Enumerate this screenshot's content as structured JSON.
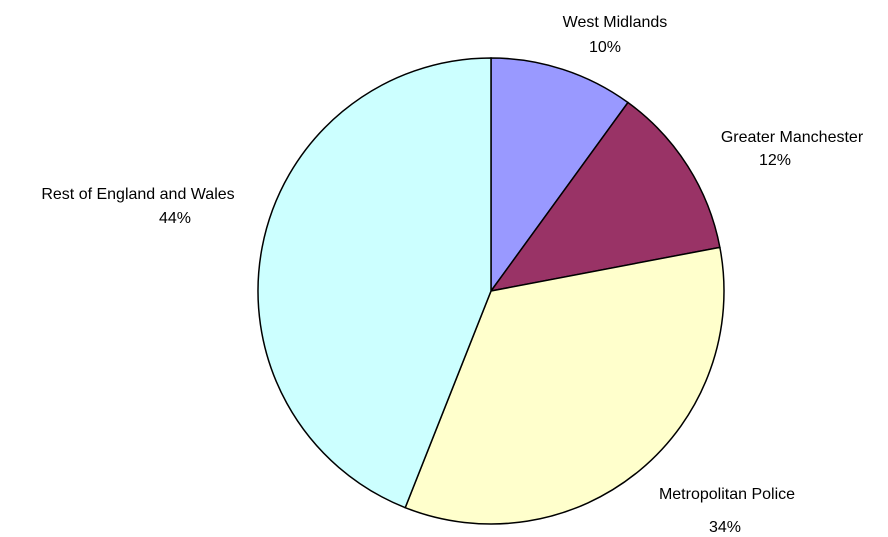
{
  "chart_data": {
    "type": "pie",
    "categories": [
      "West Midlands",
      "Greater Manchester",
      "Metropolitan Police",
      "Rest of England and Wales"
    ],
    "values": [
      10,
      12,
      34,
      44
    ],
    "value_labels": [
      "10%",
      "12%",
      "34%",
      "44%"
    ],
    "colors": [
      "#9999ff",
      "#993366",
      "#ffffcc",
      "#ccffff"
    ]
  }
}
